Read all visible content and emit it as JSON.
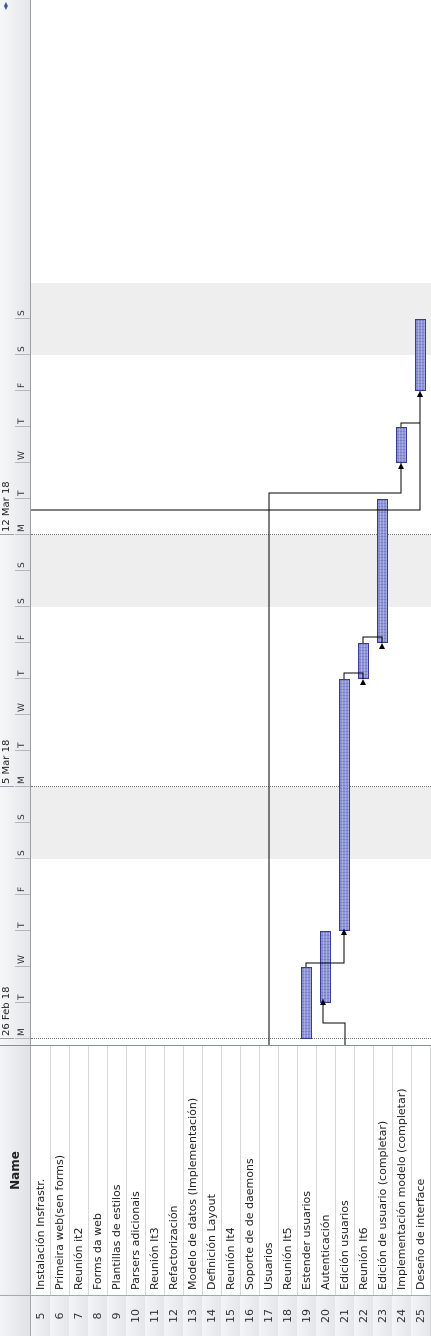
{
  "table": {
    "header": {
      "id_label": "",
      "name_label": "Name"
    },
    "rows": [
      {
        "id": "5",
        "name": "Instalación Insfrastr."
      },
      {
        "id": "6",
        "name": "Primeira web(sen forms)"
      },
      {
        "id": "7",
        "name": "Reunión it2"
      },
      {
        "id": "8",
        "name": "Forms da web"
      },
      {
        "id": "9",
        "name": "Plantillas de estilos"
      },
      {
        "id": "10",
        "name": "Parsers adicionais"
      },
      {
        "id": "11",
        "name": "Reunión It3"
      },
      {
        "id": "12",
        "name": "Refactorización"
      },
      {
        "id": "13",
        "name": "Modelo de datos (Implementación)"
      },
      {
        "id": "14",
        "name": "Definición Layout"
      },
      {
        "id": "15",
        "name": "Reunión It4"
      },
      {
        "id": "16",
        "name": "Soporte de de daemons"
      },
      {
        "id": "17",
        "name": "Usuarios"
      },
      {
        "id": "18",
        "name": "Reunión It5"
      },
      {
        "id": "19",
        "name": "Estender usuarios"
      },
      {
        "id": "20",
        "name": "Autenticación"
      },
      {
        "id": "21",
        "name": "Edición usuarios"
      },
      {
        "id": "22",
        "name": "Reunión It6"
      },
      {
        "id": "23",
        "name": "Edición de usuario (completar)"
      },
      {
        "id": "24",
        "name": "Implementación modelo (completar)"
      },
      {
        "id": "25",
        "name": "Deseño de interface"
      }
    ]
  },
  "chart": {
    "weeks": [
      {
        "label": "26 Feb 18"
      },
      {
        "label": "5 Mar 18"
      },
      {
        "label": "12 Mar 18"
      }
    ],
    "day_labels": [
      "M",
      "T",
      "W",
      "T",
      "F",
      "S",
      "S",
      "M",
      "T",
      "W",
      "T",
      "F",
      "S",
      "S",
      "M",
      "T",
      "W",
      "T",
      "F",
      "S",
      "S"
    ],
    "bars": [
      {
        "task": "19",
        "start": "26 Feb",
        "end": "28 Feb"
      },
      {
        "task": "20",
        "start": "27 Feb",
        "end": "1 Mar"
      },
      {
        "task": "21",
        "start": "1 Mar",
        "end": "8 Mar"
      },
      {
        "task": "22",
        "start": "8 Mar",
        "end": "9 Mar"
      },
      {
        "task": "23",
        "start": "9 Mar",
        "end": "13 Mar"
      },
      {
        "task": "24",
        "start": "14 Mar",
        "end": "15 Mar"
      },
      {
        "task": "25",
        "start": "16 Mar",
        "end": "18 Mar"
      }
    ],
    "colors": {
      "bar_fill": "#8d95d8",
      "bar_border": "#3a3a9a",
      "weekend": "#eeeeef",
      "link": "#000000"
    }
  }
}
